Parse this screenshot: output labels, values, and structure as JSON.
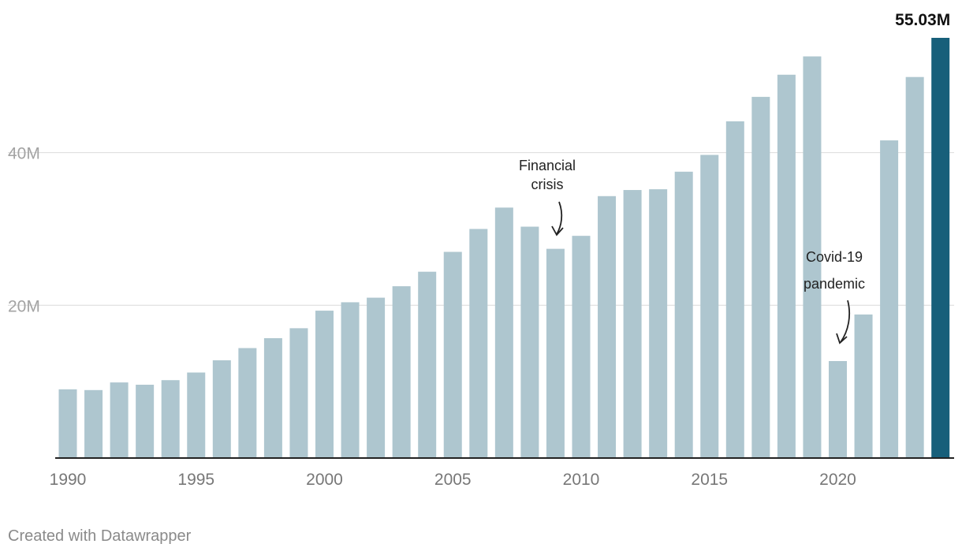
{
  "chart_data": {
    "type": "bar",
    "x": [
      1990,
      1991,
      1992,
      1993,
      1994,
      1995,
      1996,
      1997,
      1998,
      1999,
      2000,
      2001,
      2002,
      2003,
      2004,
      2005,
      2006,
      2007,
      2008,
      2009,
      2010,
      2011,
      2012,
      2013,
      2014,
      2015,
      2016,
      2017,
      2018,
      2019,
      2020,
      2021,
      2022,
      2023,
      2024
    ],
    "values": [
      9.0,
      8.9,
      9.9,
      9.6,
      10.2,
      11.2,
      12.8,
      14.4,
      15.7,
      17.0,
      19.3,
      20.4,
      21.0,
      22.5,
      24.4,
      27.0,
      30.0,
      32.8,
      30.3,
      27.4,
      29.1,
      34.3,
      35.1,
      35.2,
      37.5,
      39.7,
      44.1,
      47.3,
      50.2,
      52.6,
      12.7,
      18.8,
      41.6,
      49.9,
      55.03
    ],
    "xticks": [
      "1990",
      "1995",
      "2000",
      "2005",
      "2010",
      "2015",
      "2020"
    ],
    "yticks": [
      "20M",
      "40M"
    ],
    "ylim": [
      0,
      55.03
    ],
    "grid": true,
    "colors": {
      "bar": "#aec6cf",
      "highlight": "#175f7a"
    },
    "highlight_label": "55.03M",
    "annotations": [
      {
        "text_lines": [
          "Financial",
          "crisis"
        ],
        "x": 2009
      },
      {
        "text_lines": [
          "Covid-19",
          "pandemic"
        ],
        "x": 2020
      }
    ]
  },
  "footer": {
    "credit": "Created with Datawrapper"
  }
}
